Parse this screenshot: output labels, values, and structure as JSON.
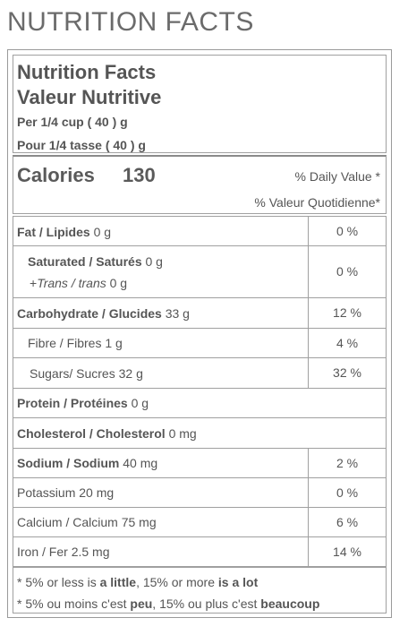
{
  "heading": "NUTRITION FACTS",
  "label": {
    "title_en": "Nutrition Facts",
    "title_fr": "Valeur Nutritive",
    "serving_en": "Per 1/4 cup ( 40 ) g",
    "serving_fr": "Pour 1/4 tasse ( 40 ) g"
  },
  "calories": {
    "label": "Calories",
    "value": "130",
    "dv_en": "% Daily Value *",
    "dv_fr": "% Valeur Quotidienne*"
  },
  "nutrients": {
    "fat": {
      "label": "Fat / Lipides",
      "amount": "0 g",
      "pct": "0 %"
    },
    "saturated": {
      "label": "Saturated / Saturés",
      "amount": "0 g",
      "pct": "0 %"
    },
    "trans": {
      "prefix": "+",
      "label": "Trans / trans",
      "amount": "0 g"
    },
    "carbohydrate": {
      "label": "Carbohydrate / Glucides",
      "amount": "33 g",
      "pct": "12 %"
    },
    "fibre": {
      "label": "Fibre / Fibres",
      "amount": "1 g",
      "pct": "4 %"
    },
    "sugars": {
      "label": "Sugars/ Sucres",
      "amount": "32 g",
      "pct": "32 %"
    },
    "protein": {
      "label": "Protein / Protéines",
      "amount": "0 g"
    },
    "cholesterol": {
      "label": "Cholesterol / Cholesterol",
      "amount": "0 mg"
    },
    "sodium": {
      "label": "Sodium / Sodium",
      "amount": "40 mg",
      "pct": "2 %"
    },
    "potassium": {
      "label": "Potassium",
      "amount": "20 mg",
      "pct": "0 %"
    },
    "calcium": {
      "label": "Calcium / Calcium",
      "amount": "75 mg",
      "pct": "6 %"
    },
    "iron": {
      "label": "Iron / Fer",
      "amount": "2.5 mg",
      "pct": "14 %"
    }
  },
  "footnote": {
    "en_a": "* 5% or less is ",
    "en_b": "a little",
    "en_c": ", 15% or more ",
    "en_d": "is a lot",
    "fr_a": "* 5% ou moins c'est ",
    "fr_b": "peu",
    "fr_c": ", 15% ou plus c'est ",
    "fr_d": "beaucoup"
  }
}
